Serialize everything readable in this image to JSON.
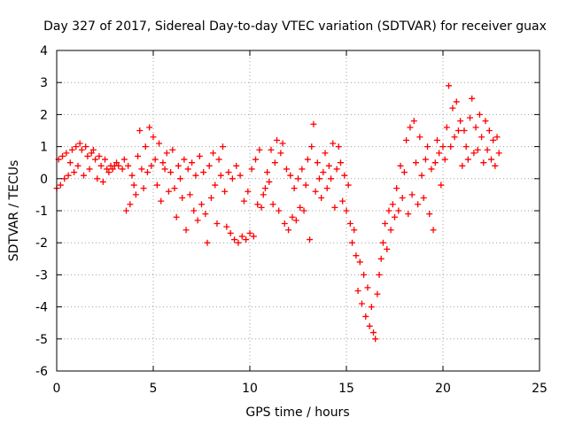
{
  "chart_data": {
    "type": "scatter",
    "title": "Day 327 of 2017, Sidereal Day-to-day VTEC variation (SDTVAR) for receiver guax",
    "xlabel": "GPS time / hours",
    "ylabel": "SDTVAR / TECUs",
    "xlim": [
      0,
      25
    ],
    "ylim": [
      -6,
      4
    ],
    "xticks": [
      0,
      5,
      10,
      15,
      20,
      25
    ],
    "yticks": [
      -6,
      -5,
      -4,
      -3,
      -2,
      -1,
      0,
      1,
      2,
      3,
      4
    ],
    "grid": true,
    "marker": "+",
    "series": [
      {
        "name": "SDTVAR",
        "color": "#ff0000",
        "points": [
          [
            0.0,
            -0.3
          ],
          [
            0.1,
            0.6
          ],
          [
            0.2,
            -0.2
          ],
          [
            0.3,
            0.7
          ],
          [
            0.4,
            0.0
          ],
          [
            0.5,
            0.8
          ],
          [
            0.6,
            0.1
          ],
          [
            0.7,
            0.5
          ],
          [
            0.8,
            0.9
          ],
          [
            0.9,
            0.2
          ],
          [
            1.0,
            1.0
          ],
          [
            1.1,
            0.4
          ],
          [
            1.2,
            1.1
          ],
          [
            1.3,
            0.9
          ],
          [
            1.4,
            0.1
          ],
          [
            1.5,
            1.0
          ],
          [
            1.6,
            0.7
          ],
          [
            1.7,
            0.3
          ],
          [
            1.8,
            0.8
          ],
          [
            1.9,
            0.9
          ],
          [
            2.0,
            0.6
          ],
          [
            2.1,
            0.0
          ],
          [
            2.2,
            0.7
          ],
          [
            2.3,
            0.4
          ],
          [
            2.4,
            -0.1
          ],
          [
            2.5,
            0.6
          ],
          [
            2.6,
            0.3
          ],
          [
            2.7,
            0.2
          ],
          [
            2.8,
            0.4
          ],
          [
            2.9,
            0.3
          ],
          [
            3.0,
            0.4
          ],
          [
            3.1,
            0.5
          ],
          [
            3.2,
            0.4
          ],
          [
            3.4,
            0.3
          ],
          [
            3.5,
            0.6
          ],
          [
            3.6,
            -1.0
          ],
          [
            3.7,
            0.4
          ],
          [
            3.8,
            -0.8
          ],
          [
            3.9,
            0.1
          ],
          [
            4.0,
            -0.2
          ],
          [
            4.1,
            -0.5
          ],
          [
            4.2,
            0.7
          ],
          [
            4.3,
            1.5
          ],
          [
            4.4,
            0.3
          ],
          [
            4.5,
            -0.3
          ],
          [
            4.6,
            1.0
          ],
          [
            4.7,
            0.2
          ],
          [
            4.8,
            1.6
          ],
          [
            4.9,
            0.4
          ],
          [
            5.0,
            1.3
          ],
          [
            5.1,
            0.6
          ],
          [
            5.2,
            -0.2
          ],
          [
            5.3,
            1.1
          ],
          [
            5.4,
            -0.7
          ],
          [
            5.5,
            0.5
          ],
          [
            5.6,
            0.3
          ],
          [
            5.7,
            0.8
          ],
          [
            5.8,
            -0.4
          ],
          [
            5.9,
            0.2
          ],
          [
            6.0,
            0.9
          ],
          [
            6.1,
            -0.3
          ],
          [
            6.2,
            -1.2
          ],
          [
            6.3,
            0.4
          ],
          [
            6.4,
            0.0
          ],
          [
            6.5,
            -0.6
          ],
          [
            6.6,
            0.6
          ],
          [
            6.7,
            -1.6
          ],
          [
            6.8,
            0.3
          ],
          [
            6.9,
            -0.5
          ],
          [
            7.0,
            0.5
          ],
          [
            7.1,
            -1.0
          ],
          [
            7.2,
            0.1
          ],
          [
            7.3,
            -1.3
          ],
          [
            7.4,
            0.7
          ],
          [
            7.5,
            -0.8
          ],
          [
            7.6,
            0.2
          ],
          [
            7.7,
            -1.1
          ],
          [
            7.8,
            -2.0
          ],
          [
            7.9,
            0.4
          ],
          [
            8.0,
            -0.6
          ],
          [
            8.1,
            0.8
          ],
          [
            8.2,
            -0.2
          ],
          [
            8.3,
            -1.4
          ],
          [
            8.4,
            0.6
          ],
          [
            8.5,
            0.1
          ],
          [
            8.6,
            1.0
          ],
          [
            8.7,
            -0.4
          ],
          [
            8.8,
            -1.5
          ],
          [
            8.9,
            0.2
          ],
          [
            9.0,
            -1.7
          ],
          [
            9.2,
            -1.9
          ],
          [
            9.4,
            -2.0
          ],
          [
            9.6,
            -1.8
          ],
          [
            9.8,
            -1.9
          ],
          [
            10.0,
            -1.7
          ],
          [
            10.2,
            -1.8
          ],
          [
            9.1,
            0.0
          ],
          [
            9.3,
            0.4
          ],
          [
            9.5,
            0.1
          ],
          [
            9.7,
            -0.7
          ],
          [
            9.9,
            -0.4
          ],
          [
            10.1,
            0.3
          ],
          [
            10.3,
            0.6
          ],
          [
            10.5,
            0.9
          ],
          [
            10.4,
            -0.8
          ],
          [
            10.6,
            -0.9
          ],
          [
            10.7,
            -0.5
          ],
          [
            10.8,
            -0.3
          ],
          [
            10.9,
            0.2
          ],
          [
            11.0,
            -0.1
          ],
          [
            11.1,
            0.9
          ],
          [
            11.2,
            -0.8
          ],
          [
            11.3,
            0.5
          ],
          [
            11.4,
            1.2
          ],
          [
            11.5,
            -1.0
          ],
          [
            11.6,
            0.8
          ],
          [
            11.7,
            1.1
          ],
          [
            11.8,
            -1.4
          ],
          [
            11.9,
            0.3
          ],
          [
            12.0,
            -1.6
          ],
          [
            12.1,
            0.1
          ],
          [
            12.2,
            -1.2
          ],
          [
            12.3,
            -0.3
          ],
          [
            12.4,
            -1.3
          ],
          [
            12.5,
            0.0
          ],
          [
            12.6,
            -0.9
          ],
          [
            12.7,
            0.3
          ],
          [
            12.8,
            -1.0
          ],
          [
            12.9,
            -0.2
          ],
          [
            13.0,
            0.6
          ],
          [
            13.1,
            -1.9
          ],
          [
            13.2,
            1.0
          ],
          [
            13.3,
            1.7
          ],
          [
            13.4,
            -0.4
          ],
          [
            13.5,
            0.5
          ],
          [
            13.6,
            0.0
          ],
          [
            13.7,
            -0.6
          ],
          [
            13.8,
            0.2
          ],
          [
            13.9,
            0.8
          ],
          [
            14.0,
            -0.3
          ],
          [
            14.1,
            0.4
          ],
          [
            14.2,
            0.0
          ],
          [
            14.3,
            1.1
          ],
          [
            14.4,
            -0.9
          ],
          [
            14.5,
            0.3
          ],
          [
            14.6,
            1.0
          ],
          [
            14.7,
            0.5
          ],
          [
            14.8,
            -0.7
          ],
          [
            14.9,
            0.1
          ],
          [
            15.0,
            -1.0
          ],
          [
            15.1,
            -0.2
          ],
          [
            15.2,
            -1.4
          ],
          [
            15.3,
            -2.0
          ],
          [
            15.4,
            -1.6
          ],
          [
            15.5,
            -2.4
          ],
          [
            15.6,
            -3.5
          ],
          [
            15.7,
            -2.6
          ],
          [
            15.8,
            -3.9
          ],
          [
            15.9,
            -3.0
          ],
          [
            16.0,
            -4.3
          ],
          [
            16.1,
            -3.4
          ],
          [
            16.2,
            -4.6
          ],
          [
            16.3,
            -4.0
          ],
          [
            16.4,
            -4.8
          ],
          [
            16.5,
            -5.0
          ],
          [
            16.6,
            -3.6
          ],
          [
            16.7,
            -3.0
          ],
          [
            16.8,
            -2.5
          ],
          [
            16.9,
            -2.0
          ],
          [
            17.0,
            -1.4
          ],
          [
            17.1,
            -2.2
          ],
          [
            17.2,
            -1.0
          ],
          [
            17.3,
            -1.6
          ],
          [
            17.4,
            -0.8
          ],
          [
            17.5,
            -1.2
          ],
          [
            17.6,
            -0.3
          ],
          [
            17.7,
            -1.0
          ],
          [
            17.8,
            0.4
          ],
          [
            17.9,
            -0.6
          ],
          [
            18.0,
            0.2
          ],
          [
            18.1,
            1.2
          ],
          [
            18.2,
            -1.1
          ],
          [
            18.3,
            1.6
          ],
          [
            18.4,
            -0.5
          ],
          [
            18.5,
            1.8
          ],
          [
            18.6,
            0.5
          ],
          [
            18.7,
            -0.8
          ],
          [
            18.8,
            1.3
          ],
          [
            18.9,
            0.1
          ],
          [
            19.0,
            -0.6
          ],
          [
            19.1,
            0.6
          ],
          [
            19.2,
            1.0
          ],
          [
            19.3,
            -1.1
          ],
          [
            19.4,
            0.3
          ],
          [
            19.5,
            -1.6
          ],
          [
            19.6,
            0.5
          ],
          [
            19.7,
            1.2
          ],
          [
            19.8,
            0.8
          ],
          [
            19.9,
            -0.2
          ],
          [
            20.0,
            1.0
          ],
          [
            20.1,
            0.6
          ],
          [
            20.2,
            1.6
          ],
          [
            20.3,
            2.9
          ],
          [
            20.4,
            1.0
          ],
          [
            20.5,
            2.2
          ],
          [
            20.6,
            1.3
          ],
          [
            20.7,
            2.4
          ],
          [
            20.8,
            1.5
          ],
          [
            20.9,
            1.8
          ],
          [
            21.0,
            0.4
          ],
          [
            21.1,
            1.5
          ],
          [
            21.2,
            1.0
          ],
          [
            21.3,
            0.6
          ],
          [
            21.4,
            1.9
          ],
          [
            21.5,
            2.5
          ],
          [
            21.6,
            0.8
          ],
          [
            21.7,
            1.6
          ],
          [
            21.8,
            0.9
          ],
          [
            21.9,
            2.0
          ],
          [
            22.0,
            1.3
          ],
          [
            22.1,
            0.5
          ],
          [
            22.2,
            1.8
          ],
          [
            22.3,
            0.9
          ],
          [
            22.4,
            1.5
          ],
          [
            22.5,
            0.6
          ],
          [
            22.6,
            1.2
          ],
          [
            22.7,
            0.4
          ],
          [
            22.8,
            1.3
          ],
          [
            22.9,
            0.8
          ]
        ]
      }
    ]
  }
}
